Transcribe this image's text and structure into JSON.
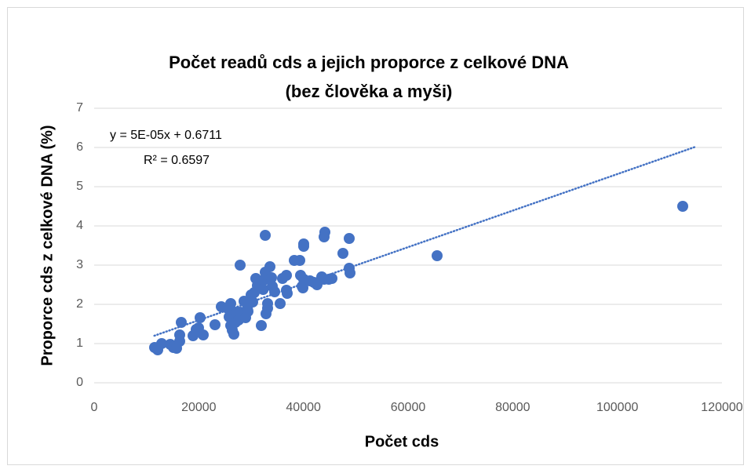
{
  "chart_data": {
    "type": "scatter",
    "title": [
      "Počet readů cds a jejich proporce z celkové DNA",
      "(bez člověka a myši)"
    ],
    "xlabel": "Počet cds",
    "ylabel": "Proporce cds z celkové DNA (%)",
    "annotations": [
      "y = 5E-05x + 0.6711",
      "R² = 0.6597"
    ],
    "color": "#4472c4",
    "xlim": [
      0,
      120000
    ],
    "ylim": [
      0,
      7
    ],
    "xticks": [
      0,
      20000,
      40000,
      60000,
      80000,
      100000,
      120000
    ],
    "yticks": [
      0,
      1,
      2,
      3,
      4,
      5,
      6,
      7
    ],
    "grid": true,
    "x": [
      11550,
      12150,
      12900,
      14550,
      15150,
      15450,
      15750,
      16350,
      16350,
      16650,
      18900,
      19500,
      19950,
      20250,
      20850,
      23100,
      24300,
      25500,
      25800,
      26100,
      26100,
      26400,
      26700,
      27000,
      27300,
      27600,
      27900,
      27900,
      28650,
      28950,
      29300,
      29400,
      30000,
      30300,
      30600,
      30900,
      31200,
      31950,
      32300,
      32400,
      32700,
      32700,
      32850,
      33150,
      33150,
      33600,
      33900,
      34050,
      34500,
      35550,
      36000,
      36750,
      36750,
      36900,
      38250,
      39300,
      39450,
      39750,
      39900,
      40050,
      40050,
      40050,
      41250,
      42000,
      42600,
      43500,
      43950,
      44100,
      43950,
      44850,
      45450,
      47550,
      48750,
      48750,
      48900,
      65550,
      112500
    ],
    "values": [
      0.9,
      0.84,
      1.0,
      0.98,
      0.9,
      0.94,
      0.88,
      1.06,
      1.22,
      1.54,
      1.2,
      1.36,
      1.4,
      1.66,
      1.22,
      1.48,
      1.94,
      1.9,
      1.68,
      2.02,
      1.46,
      1.34,
      1.24,
      1.54,
      1.8,
      1.6,
      3.0,
      1.8,
      2.08,
      1.66,
      1.88,
      1.82,
      2.24,
      2.06,
      2.3,
      2.66,
      2.48,
      1.46,
      2.38,
      2.62,
      2.82,
      3.76,
      1.76,
      2.02,
      1.9,
      2.96,
      2.68,
      2.46,
      2.32,
      2.02,
      2.66,
      2.36,
      2.74,
      2.28,
      3.12,
      3.12,
      2.74,
      2.46,
      2.42,
      3.54,
      3.48,
      2.64,
      2.6,
      2.56,
      2.5,
      2.7,
      2.64,
      3.84,
      3.72,
      2.64,
      2.66,
      3.3,
      3.68,
      2.92,
      2.8,
      3.24,
      4.5
    ],
    "trendline": {
      "x": [
        11500,
        115000
      ],
      "y": [
        1.2,
        6.02
      ]
    }
  }
}
